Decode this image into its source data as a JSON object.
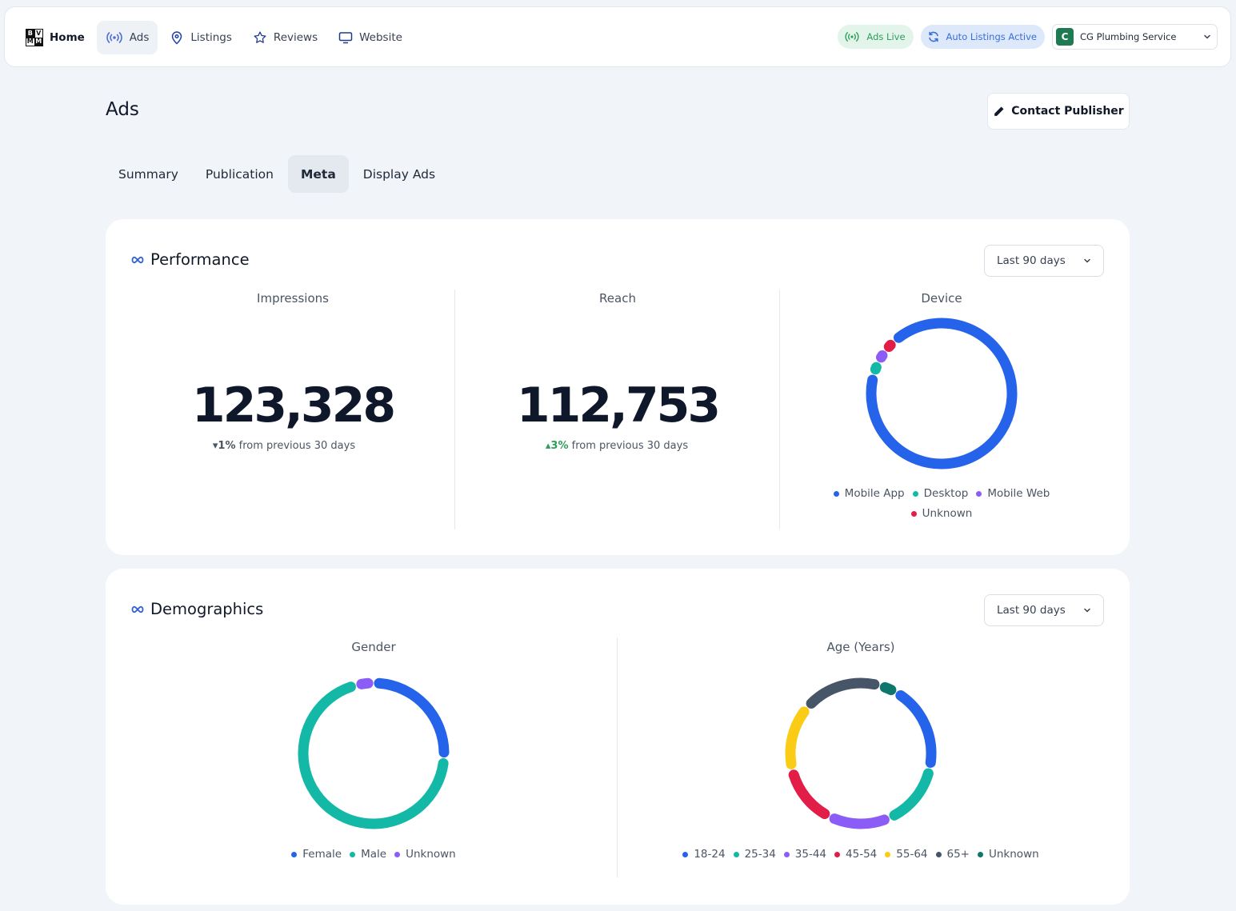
{
  "nav": {
    "items": [
      {
        "label": "Home",
        "icon": "brand-logo-icon"
      },
      {
        "label": "Ads",
        "icon": "broadcast-icon"
      },
      {
        "label": "Listings",
        "icon": "map-pin-icon"
      },
      {
        "label": "Reviews",
        "icon": "star-icon"
      },
      {
        "label": "Website",
        "icon": "monitor-icon"
      }
    ],
    "logo_letters": [
      "B",
      "V",
      "M",
      "M"
    ]
  },
  "status": {
    "ads_live": "Ads Live",
    "auto_listings": "Auto Listings Active"
  },
  "account": {
    "initial": "C",
    "name": "CG Plumbing Service"
  },
  "page": {
    "title": "Ads",
    "contact_button": "Contact Publisher"
  },
  "tabs": [
    "Summary",
    "Publication",
    "Meta",
    "Display Ads"
  ],
  "performance": {
    "title": "Performance",
    "range": "Last 90 days",
    "impressions": {
      "label": "Impressions",
      "value": "123,328",
      "delta": "1%",
      "delta_dir": "down",
      "delta_text": "from previous 30 days"
    },
    "reach": {
      "label": "Reach",
      "value": "112,753",
      "delta": "3%",
      "delta_dir": "up",
      "delta_text": "from previous 30 days"
    },
    "device": {
      "label": "Device"
    }
  },
  "demographics": {
    "title": "Demographics",
    "range": "Last 90 days",
    "gender": {
      "label": "Gender"
    },
    "age": {
      "label": "Age (Years)"
    }
  },
  "colors": {
    "blue": "#2563eb",
    "teal": "#14b8a6",
    "purple": "#8b5cf6",
    "red": "#e11d48",
    "yellow": "#facc15",
    "slate": "#475569",
    "dark_teal": "#0f766e"
  },
  "chart_data": [
    {
      "type": "pie",
      "title": "Device",
      "categories": [
        "Mobile App",
        "Desktop",
        "Mobile Web",
        "Unknown"
      ],
      "values": [
        91,
        3,
        3,
        3
      ],
      "colors": [
        "#2563eb",
        "#14b8a6",
        "#8b5cf6",
        "#e11d48"
      ]
    },
    {
      "type": "pie",
      "title": "Gender",
      "categories": [
        "Female",
        "Male",
        "Unknown"
      ],
      "values": [
        26,
        70,
        4
      ],
      "colors": [
        "#2563eb",
        "#14b8a6",
        "#8b5cf6"
      ]
    },
    {
      "type": "pie",
      "title": "Age (Years)",
      "categories": [
        "18-24",
        "25-34",
        "35-44",
        "45-54",
        "55-64",
        "65+",
        "Unknown"
      ],
      "values": [
        20,
        15,
        14,
        14,
        15,
        18,
        4
      ],
      "colors": [
        "#2563eb",
        "#14b8a6",
        "#8b5cf6",
        "#e11d48",
        "#facc15",
        "#475569",
        "#0f766e"
      ]
    }
  ]
}
